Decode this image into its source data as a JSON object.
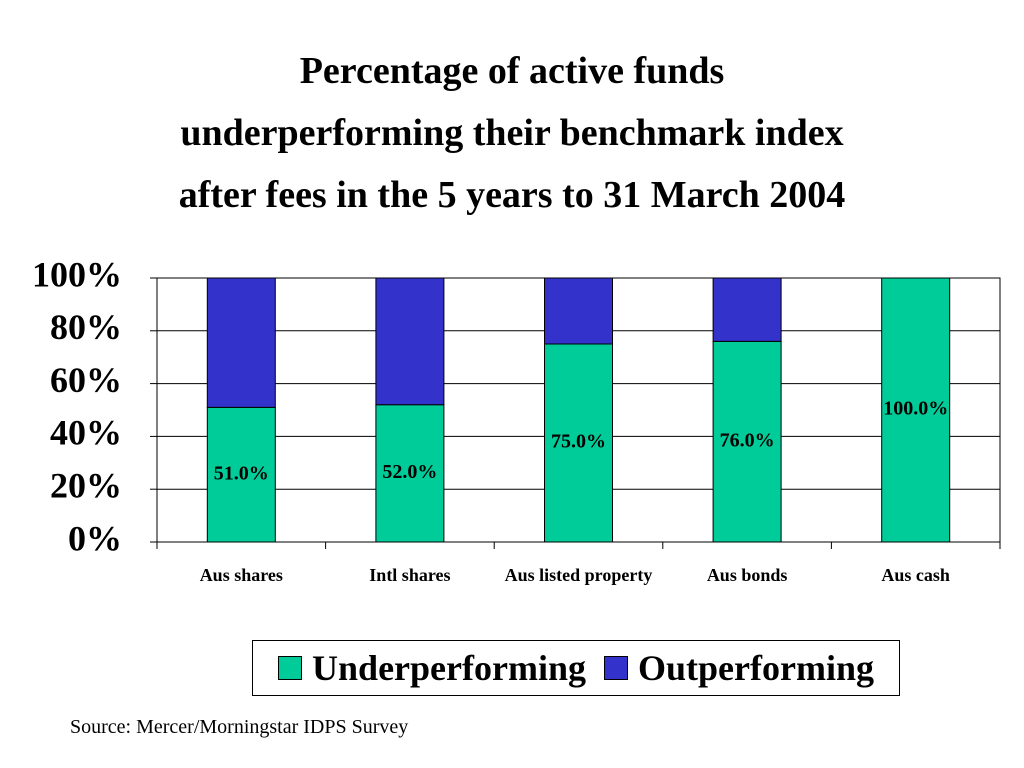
{
  "chart_data": {
    "type": "stacked_bar",
    "title": "Percentage of active funds\nunderperforming their benchmark index\nafter fees in the 5 years to 31 March 2004",
    "categories": [
      "Aus shares",
      "Intl shares",
      "Aus listed property",
      "Aus bonds",
      "Aus cash"
    ],
    "series": [
      {
        "name": "Underperforming",
        "color": "#00cc99",
        "values": [
          51,
          52,
          75,
          76,
          100
        ],
        "value_labels": [
          "51.0%",
          "52.0%",
          "75.0%",
          "76.0%",
          "100.0%"
        ]
      },
      {
        "name": "Outperforming",
        "color": "#3333cc",
        "values": [
          49,
          48,
          25,
          24,
          0
        ]
      }
    ],
    "ylim": [
      0,
      100
    ],
    "yticks": [
      {
        "value": 0,
        "label": "0%"
      },
      {
        "value": 20,
        "label": "20%"
      },
      {
        "value": 40,
        "label": "40%"
      },
      {
        "value": 60,
        "label": "60%"
      },
      {
        "value": 80,
        "label": "80%"
      },
      {
        "value": 100,
        "label": "100%"
      }
    ],
    "grid": true,
    "legend": "bottom",
    "source": "Source: Mercer/Morningstar IDPS Survey"
  }
}
